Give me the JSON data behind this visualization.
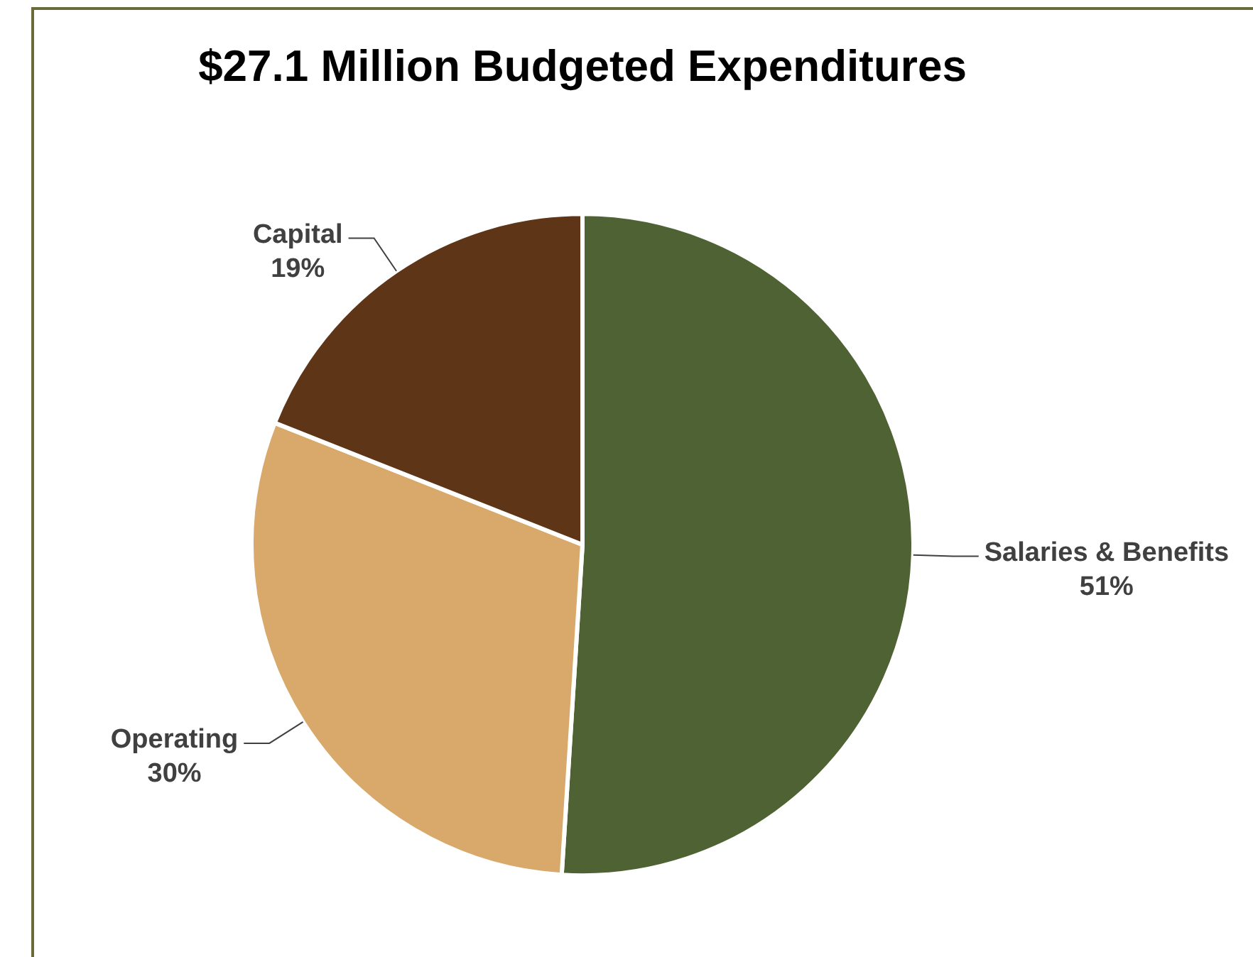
{
  "chart_data": {
    "type": "pie",
    "title": "$27.1 Million Budgeted Expenditures",
    "categories": [
      "Salaries & Benefits",
      "Operating",
      "Capital"
    ],
    "values": [
      51,
      30,
      19
    ],
    "colors": [
      "#4f6233",
      "#d9a96b",
      "#5e3517"
    ],
    "value_labels": [
      "51%",
      "30%",
      "19%"
    ],
    "legend": false
  }
}
